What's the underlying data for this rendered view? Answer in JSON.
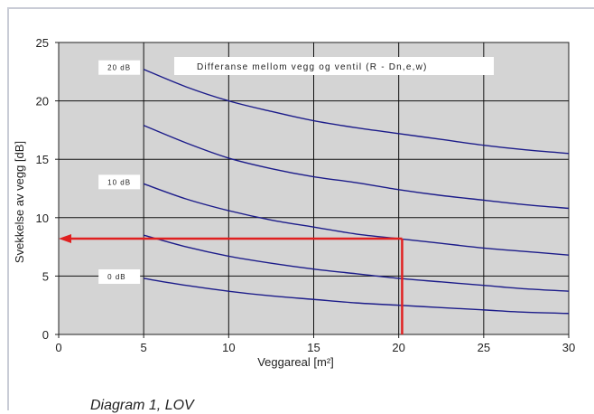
{
  "caption": "Diagram 1, LOV",
  "chart_data": {
    "type": "line",
    "title": "Differanse mellom vegg og ventil (R - Dn,e,w)",
    "xlabel": "Veggareal [m²]",
    "ylabel": "Svekkelse av vegg [dB]",
    "xlim": [
      0,
      30
    ],
    "ylim": [
      0,
      25
    ],
    "xticks": [
      "0",
      "5",
      "10",
      "15",
      "20",
      "25",
      "30"
    ],
    "yticks": [
      "0",
      "5",
      "10",
      "15",
      "20",
      "25"
    ],
    "grid": true,
    "plot_background": "#d4d4d4",
    "line_color": "#1c1c8a",
    "x": [
      5,
      7.5,
      10,
      12.5,
      15,
      17.5,
      20,
      22.5,
      25,
      27.5,
      30
    ],
    "series": [
      {
        "label": "0 dB",
        "values": [
          4.8,
          4.2,
          3.7,
          3.3,
          3.0,
          2.7,
          2.5,
          2.3,
          2.1,
          1.9,
          1.8
        ]
      },
      {
        "label": "",
        "values": [
          8.5,
          7.5,
          6.7,
          6.1,
          5.6,
          5.2,
          4.8,
          4.5,
          4.2,
          3.9,
          3.7
        ]
      },
      {
        "label": "10 dB",
        "values": [
          12.9,
          11.6,
          10.6,
          9.8,
          9.2,
          8.6,
          8.2,
          7.8,
          7.4,
          7.1,
          6.8
        ]
      },
      {
        "label": "",
        "values": [
          17.9,
          16.4,
          15.1,
          14.2,
          13.5,
          13.0,
          12.4,
          11.9,
          11.5,
          11.1,
          10.8
        ]
      },
      {
        "label": "20 dB",
        "values": [
          22.7,
          21.2,
          20.0,
          19.1,
          18.3,
          17.7,
          17.2,
          16.7,
          16.2,
          15.8,
          15.5
        ]
      }
    ],
    "reference_lines": {
      "color": "#e02020",
      "vertical_x": 20.2,
      "horizontal_y": 8.2
    }
  }
}
